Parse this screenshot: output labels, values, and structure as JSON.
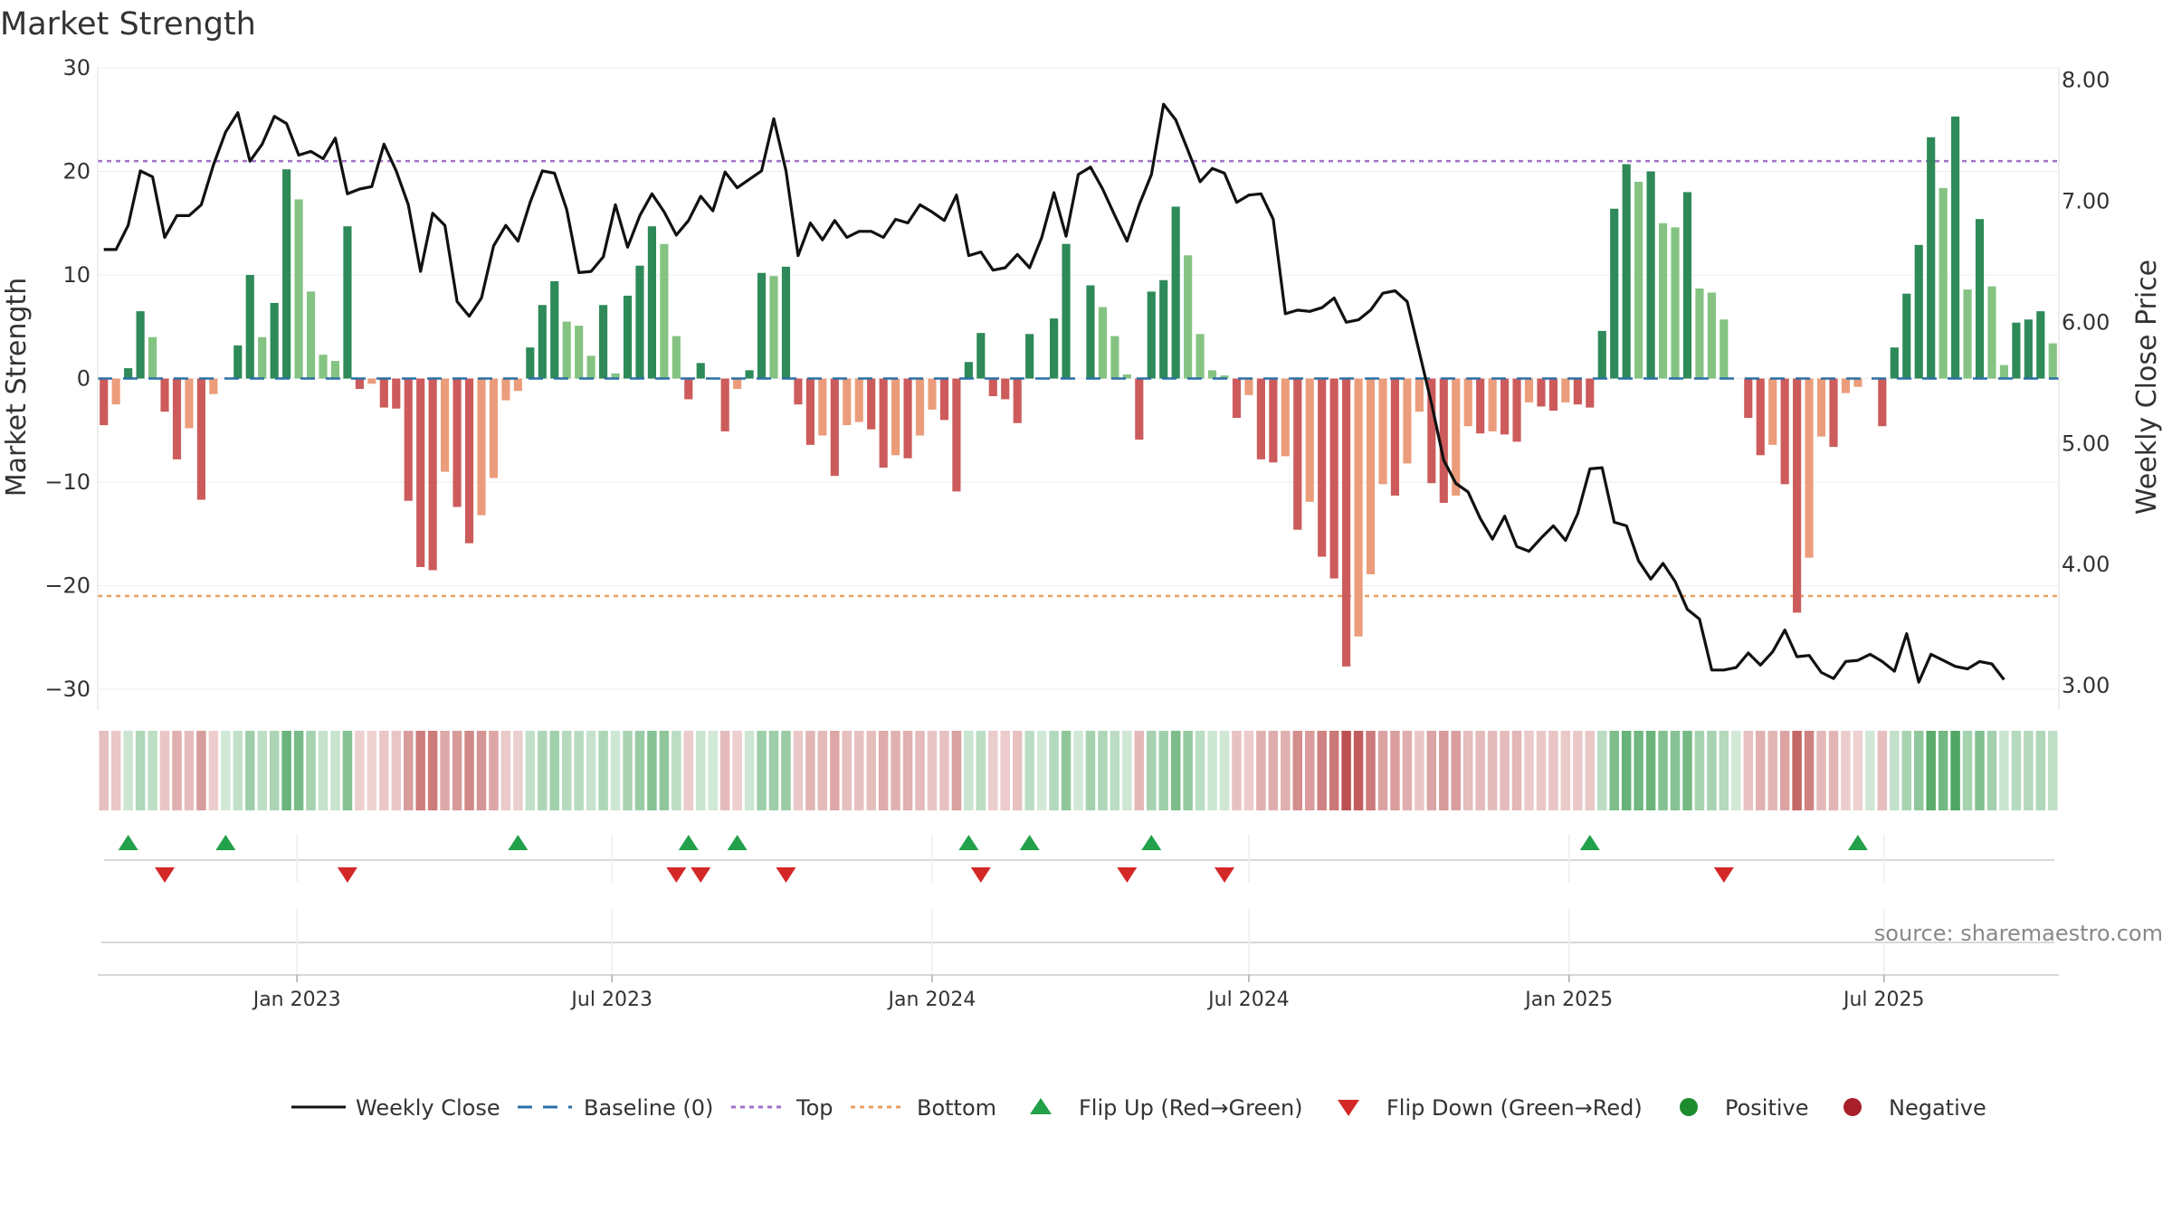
{
  "chart_data": {
    "type": "bar",
    "title": "Market Strength",
    "ylabel_left": "Market Strength",
    "ylabel_right": "Weekly Close Price",
    "ylim_left": [
      -32,
      30
    ],
    "ylim_right": [
      2.8,
      8.1
    ],
    "left_ticks": [
      30,
      20,
      10,
      0,
      -10,
      -20,
      -30
    ],
    "left_tick_labels": [
      "30",
      "20",
      "10",
      "0",
      "−10",
      "−20",
      "−30"
    ],
    "right_ticks": [
      8,
      7,
      6,
      5,
      4,
      3
    ],
    "right_tick_labels": [
      "8.00",
      "7.00",
      "6.00",
      "5.00",
      "4.00",
      "3.00"
    ],
    "top_level": 21,
    "bottom_level": -21,
    "start_date": "2022-09-12",
    "week_days": 7,
    "date_ticks": [
      {
        "date": "2023-01-01",
        "label": "Jan 2023"
      },
      {
        "date": "2023-07-01",
        "label": "Jul 2023"
      },
      {
        "date": "2024-01-01",
        "label": "Jan 2024"
      },
      {
        "date": "2024-07-01",
        "label": "Jul 2024"
      },
      {
        "date": "2025-01-01",
        "label": "Jan 2025"
      },
      {
        "date": "2025-07-01",
        "label": "Jul 2025"
      }
    ],
    "strength": [
      -4.5,
      -2.5,
      1,
      6.5,
      4,
      -3.2,
      -7.8,
      -4.8,
      -11.7,
      -1.5,
      0,
      3.2,
      10,
      4,
      7.3,
      20.2,
      17.3,
      8.4,
      2.3,
      1.7,
      14.7,
      -1,
      -0.5,
      -2.8,
      -2.9,
      -11.8,
      -18.2,
      -18.5,
      -9,
      -12.4,
      -15.9,
      -13.2,
      -9.6,
      -2.1,
      -1.2,
      3,
      7.1,
      9.4,
      5.5,
      5.1,
      2.2,
      7.1,
      0.5,
      8,
      10.9,
      14.7,
      13,
      4.1,
      -2,
      1.5,
      0,
      -5.1,
      -1,
      0.8,
      10.2,
      9.9,
      10.8,
      -2.5,
      -6.4,
      -5.5,
      -9.4,
      -4.5,
      -4.2,
      -4.9,
      -8.6,
      -7.4,
      -7.7,
      -5.5,
      -3,
      -4,
      -10.9,
      1.6,
      4.4,
      -1.7,
      -2,
      -4.3,
      4.3,
      0,
      5.8,
      13,
      0,
      9,
      6.9,
      4.1,
      0.4,
      -5.9,
      8.4,
      9.5,
      16.6,
      11.9,
      4.3,
      0.8,
      0.3,
      -3.8,
      -1.6,
      -7.8,
      -8.1,
      -7.5,
      -14.6,
      -11.9,
      -17.2,
      -19.3,
      -27.8,
      -24.9,
      -18.9,
      -10.2,
      -11.3,
      -8.2,
      -3.2,
      -10.1,
      -12,
      -11.3,
      -4.6,
      -5.3,
      -5.1,
      -5.4,
      -6.1,
      -2.3,
      -2.7,
      -3.1,
      -2.3,
      -2.5,
      -2.8,
      4.6,
      16.4,
      20.7,
      19,
      20,
      15,
      14.6,
      18,
      8.7,
      8.3,
      5.7,
      0,
      -3.8,
      -7.4,
      -6.4,
      -10.2,
      -22.6,
      -17.3,
      -5.6,
      -6.6,
      -1.4,
      -0.8,
      0,
      -4.6,
      3,
      8.2,
      12.9,
      23.3,
      18.4,
      25.3,
      8.6,
      15.4,
      8.9,
      1.3,
      5.4,
      5.7,
      6.5,
      3.4
    ],
    "close": [
      6.6,
      6.6,
      6.8,
      7.25,
      7.2,
      6.7,
      6.88,
      6.88,
      6.97,
      7.3,
      7.57,
      7.73,
      7.33,
      7.47,
      7.7,
      7.64,
      7.38,
      7.41,
      7.35,
      7.52,
      7.06,
      7.1,
      7.12,
      7.47,
      7.25,
      6.97,
      6.42,
      6.9,
      6.8,
      6.17,
      6.05,
      6.2,
      6.63,
      6.8,
      6.67,
      6.99,
      7.25,
      7.23,
      6.93,
      6.41,
      6.42,
      6.54,
      6.97,
      6.62,
      6.88,
      7.06,
      6.91,
      6.72,
      6.84,
      7.04,
      6.92,
      7.24,
      7.11,
      7.18,
      7.25,
      7.68,
      7.25,
      6.55,
      6.82,
      6.68,
      6.84,
      6.7,
      6.75,
      6.75,
      6.7,
      6.85,
      6.82,
      6.97,
      6.91,
      6.84,
      7.05,
      6.55,
      6.58,
      6.43,
      6.45,
      6.56,
      6.45,
      6.7,
      7.07,
      6.71,
      7.22,
      7.28,
      7.1,
      6.88,
      6.67,
      6.97,
      7.22,
      7.8,
      7.67,
      7.42,
      7.16,
      7.27,
      7.23,
      6.99,
      7.05,
      7.06,
      6.85,
      6.07,
      6.1,
      6.09,
      6.12,
      6.2,
      6,
      6.02,
      6.1,
      6.24,
      6.26,
      6.17,
      5.75,
      5.33,
      4.86,
      4.67,
      4.6,
      4.38,
      4.21,
      4.4,
      4.15,
      4.11,
      4.22,
      4.32,
      4.2,
      4.42,
      4.79,
      4.8,
      4.35,
      4.32,
      4.03,
      3.88,
      4.01,
      3.86,
      3.63,
      3.55,
      3.13,
      3.13,
      3.15,
      3.27,
      3.17,
      3.28,
      3.46,
      3.24,
      3.25,
      3.11,
      3.06,
      3.2,
      3.21,
      3.26,
      3.2,
      3.12,
      3.43,
      3.03,
      3.26,
      3.21,
      3.16,
      3.14,
      3.2,
      3.18,
      3.05
    ],
    "flip_up_weeks": [
      2,
      10,
      34,
      48,
      52,
      71,
      76,
      86,
      122,
      144
    ],
    "flip_down_weeks": [
      5,
      20,
      47,
      49,
      56,
      72,
      84,
      92,
      133
    ],
    "series": [
      {
        "name": "Weekly Close",
        "color": "#111111"
      },
      {
        "name": "Baseline (0)",
        "color": "#2b6fa5"
      },
      {
        "name": "Top",
        "color": "#a070c8"
      },
      {
        "name": "Bottom",
        "color": "#e8a060"
      },
      {
        "name": "Flip Up (Red→Green)",
        "color": "#22a04a"
      },
      {
        "name": "Flip Down (Green→Red)",
        "color": "#d42828"
      },
      {
        "name": "Positive",
        "color": "#1e8c2e"
      },
      {
        "name": "Negative",
        "color": "#a8202a"
      }
    ],
    "colors": {
      "pos_strong": "#2e8a58",
      "pos_light": "#85c383",
      "neg_strong": "#cd5b5b",
      "neg_light": "#eb9d7b",
      "heat_pos": [
        46,
        150,
        70
      ],
      "heat_neg": [
        180,
        60,
        60
      ]
    },
    "source": "source: sharemaestro.com"
  }
}
